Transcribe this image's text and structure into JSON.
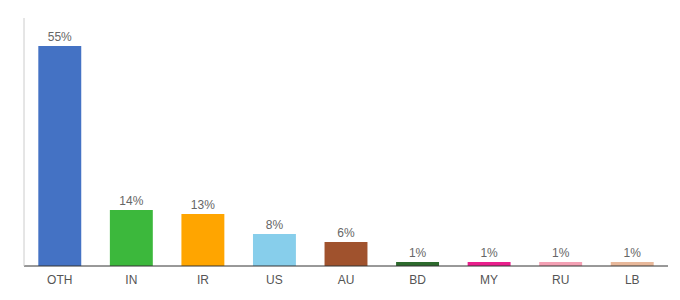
{
  "chart_data": {
    "type": "bar",
    "categories": [
      "OTH",
      "IN",
      "IR",
      "US",
      "AU",
      "BD",
      "MY",
      "RU",
      "LB"
    ],
    "values": [
      55,
      14,
      13,
      8,
      6,
      1,
      1,
      1,
      1
    ],
    "value_labels": [
      "55%",
      "14%",
      "13%",
      "8%",
      "6%",
      "1%",
      "1%",
      "1%",
      "1%"
    ],
    "colors": [
      "#4472c4",
      "#3cb83c",
      "#ffa500",
      "#87ceeb",
      "#a0522d",
      "#2d6a2d",
      "#e91e8c",
      "#f4a0b4",
      "#e8b89a"
    ],
    "ylim": [
      0,
      62
    ],
    "data_labels": true,
    "tick_labels": "x",
    "grid": false
  }
}
